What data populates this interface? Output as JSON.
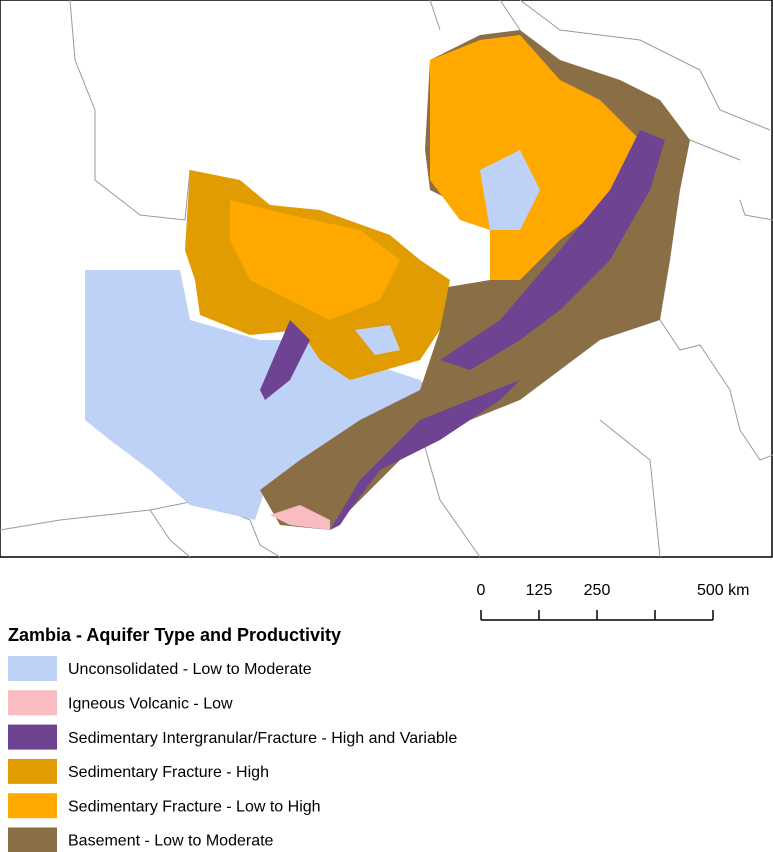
{
  "legend": {
    "title": "Zambia - Aquifer Type and Productivity",
    "items": [
      {
        "label": "Unconsolidated - Low to Moderate",
        "color": "#bed2f7"
      },
      {
        "label": "Igneous Volcanic - Low",
        "color": "#f9bdc1"
      },
      {
        "label": "Sedimentary Intergranular/Fracture - High and Variable",
        "color": "#6e4391"
      },
      {
        "label": "Sedimentary Fracture - High",
        "color": "#e09c00"
      },
      {
        "label": "Sedimentary Fracture - Low to High",
        "color": "#ffa900"
      },
      {
        "label": "Basement - Low to Moderate",
        "color": "#8a6f46"
      }
    ]
  },
  "scale_bar": {
    "ticks": [
      0,
      125,
      250,
      {
        "value": 375
      },
      {
        "value": 500,
        "label": "500 km"
      }
    ]
  }
}
